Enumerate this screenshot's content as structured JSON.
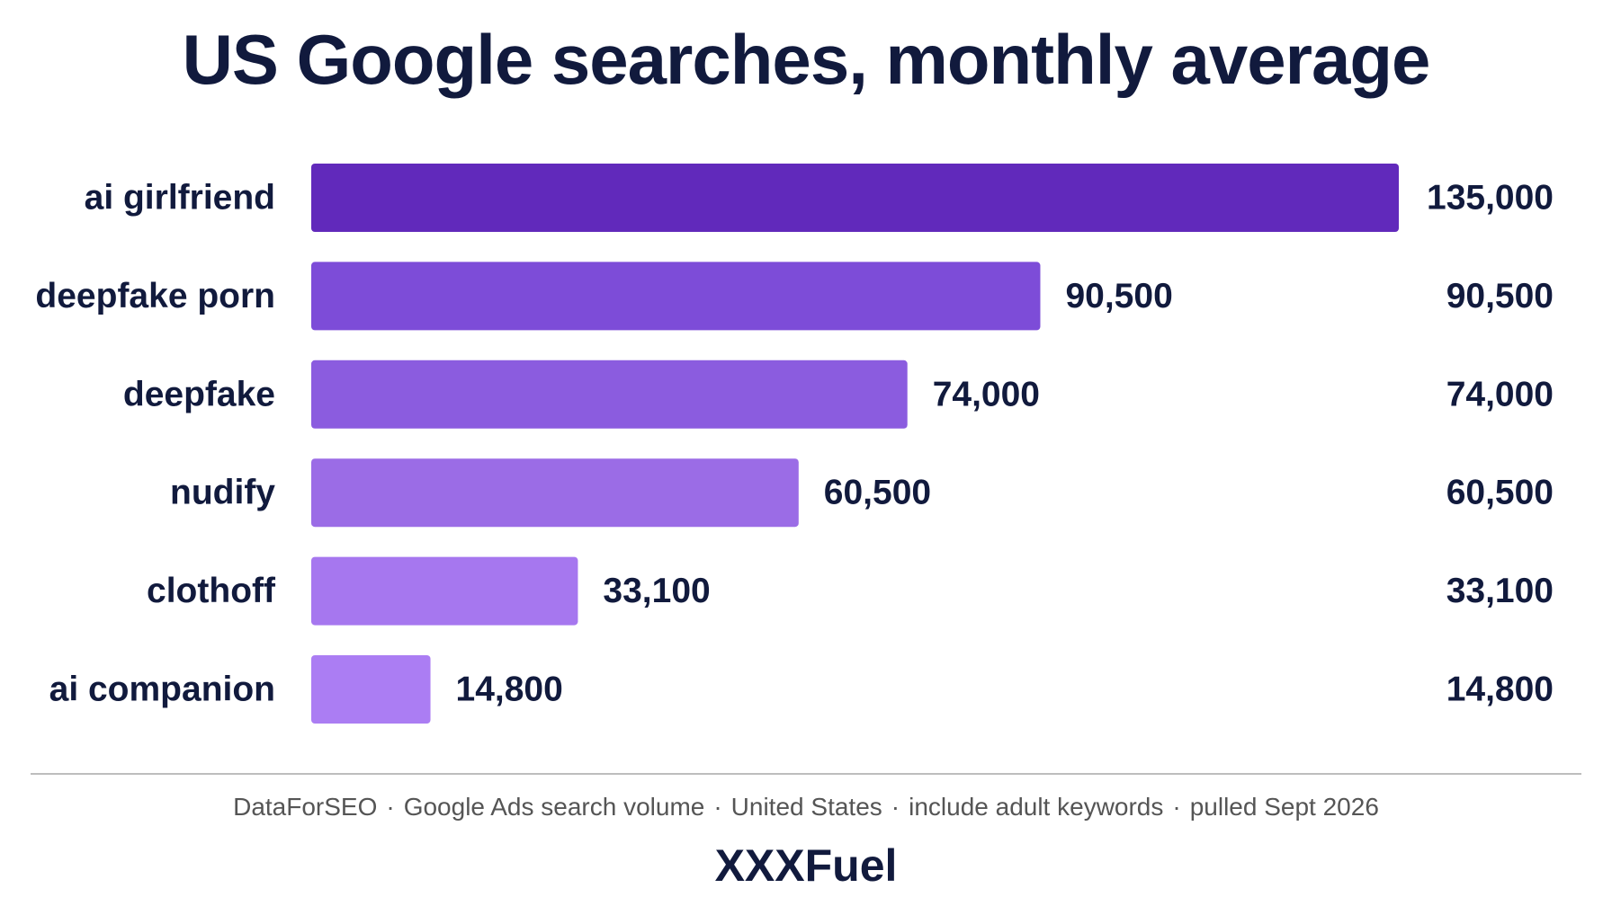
{
  "chart_data": {
    "type": "bar",
    "orientation": "horizontal",
    "title": "US Google searches, monthly average",
    "categories": [
      "ai girlfriend",
      "deepfake porn",
      "deepfake",
      "nudify",
      "clothoff",
      "ai companion"
    ],
    "values": [
      135000,
      90500,
      74000,
      60500,
      33100,
      14800
    ],
    "value_labels": [
      "135,000",
      "90,500",
      "74,000",
      "60,500",
      "33,100",
      "14,800"
    ],
    "right_column_labels": [
      "135,000",
      "90,500",
      "74,000",
      "60,500",
      "33,100",
      "14,800"
    ],
    "xlim": [
      0,
      135000
    ],
    "grid": false,
    "colors": [
      "#6129bb",
      "#7d4cd8",
      "#8b5cdf",
      "#9b6ce6",
      "#a677ef",
      "#ab7df3"
    ]
  },
  "footer": {
    "source_parts": [
      "DataForSEO",
      "Google Ads search volume",
      "United States",
      "include adult keywords",
      "pulled Sept 2026"
    ],
    "separator": "·",
    "brand": "XXXFuel"
  }
}
